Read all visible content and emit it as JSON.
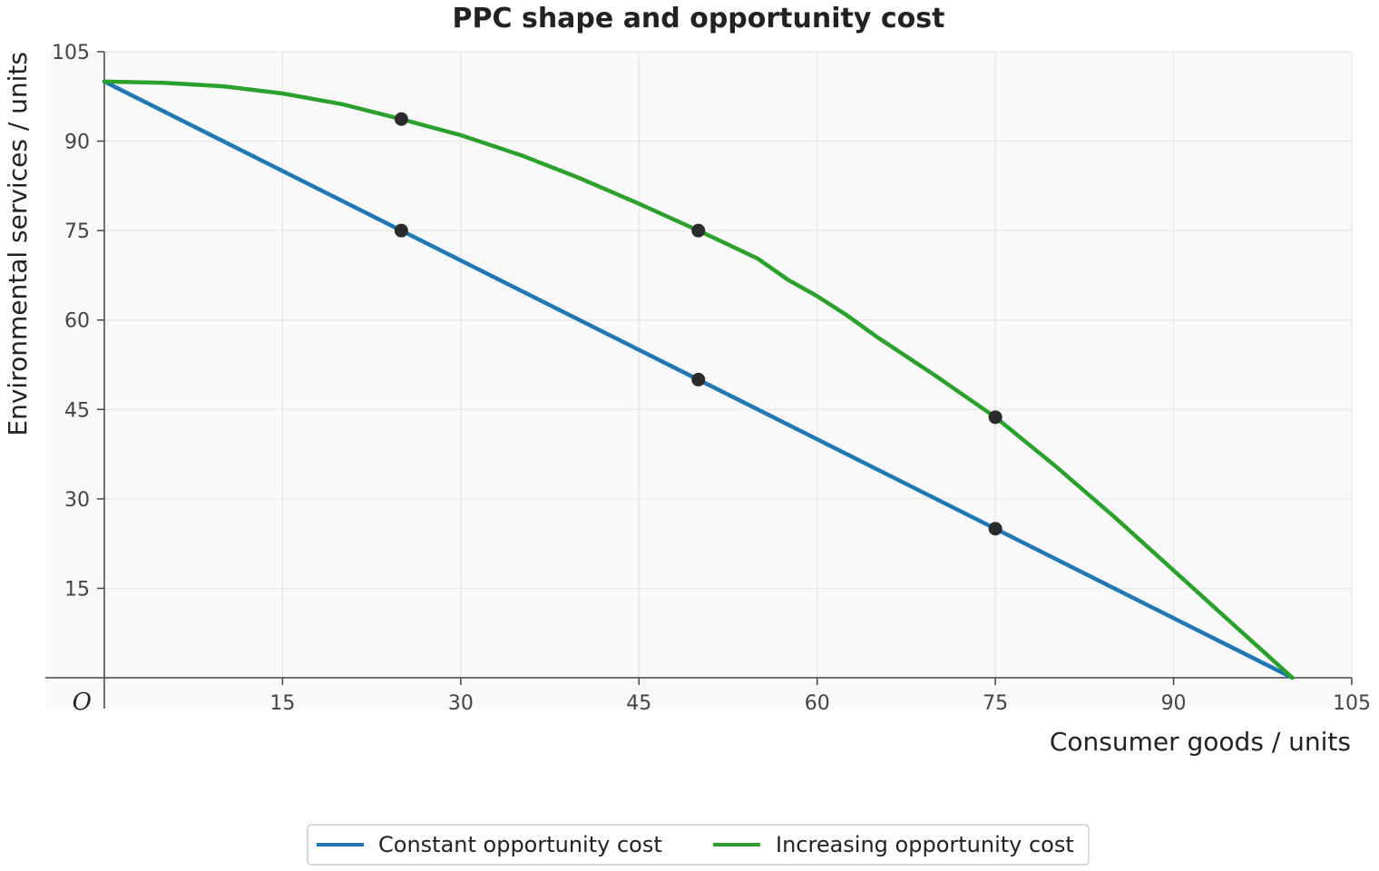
{
  "chart_data": {
    "type": "line",
    "title": "PPC shape and opportunity cost",
    "xlabel": "Consumer goods / units",
    "ylabel": "Environmental services / units",
    "origin_label": "O",
    "xlim": [
      0,
      105
    ],
    "ylim": [
      0,
      105
    ],
    "xticks": [
      15,
      30,
      45,
      60,
      75,
      90,
      105
    ],
    "yticks": [
      15,
      30,
      45,
      60,
      75,
      90,
      105
    ],
    "grid": true,
    "legend_position": "bottom-center",
    "series": [
      {
        "name": "Constant opportunity cost",
        "color": "#1f77b4",
        "x": [
          0,
          100
        ],
        "y": [
          100,
          0
        ],
        "markers": [
          [
            25,
            75
          ],
          [
            50,
            50
          ],
          [
            75,
            25
          ]
        ]
      },
      {
        "name": "Increasing opportunity cost",
        "color": "#2ca02c",
        "x": [
          0,
          5,
          10,
          15,
          20,
          25,
          30,
          35,
          40,
          45,
          50,
          55,
          57.5,
          60,
          62.5,
          65,
          70,
          75,
          80,
          85,
          90,
          95,
          100
        ],
        "y": [
          100,
          99.8,
          99.2,
          98.0,
          96.2,
          93.7,
          91.0,
          87.7,
          83.8,
          79.5,
          75.0,
          70.3,
          66.8,
          64.0,
          60.8,
          57.2,
          50.6,
          43.7,
          35.6,
          27.0,
          18.0,
          9.0,
          0
        ],
        "markers": [
          [
            25,
            93.7
          ],
          [
            50,
            75.0
          ],
          [
            75,
            43.7
          ]
        ]
      }
    ],
    "marker_color": "#2b2b2b"
  },
  "colors": {
    "plot_background": "#f9f9f9",
    "grid": "#e6e6e6",
    "axis": "#444444"
  }
}
